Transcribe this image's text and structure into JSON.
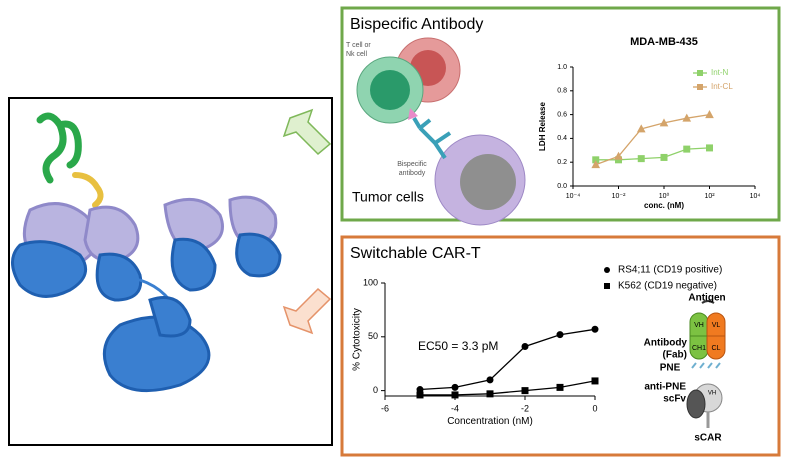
{
  "chart_data": [
    {
      "type": "line",
      "title": "MDA-MB-435",
      "x_label": "conc. (nM)",
      "y_label": "LDH Release",
      "xscale": "log",
      "x": [
        0.001,
        0.01,
        0.1,
        1,
        10,
        100
      ],
      "xlim": [
        0.0001,
        10000
      ],
      "xticks": [
        {
          "value": 0.0001,
          "label": "10⁻⁴"
        },
        {
          "value": 0.01,
          "label": "10⁻²"
        },
        {
          "value": 1,
          "label": "10⁰"
        },
        {
          "value": 100,
          "label": "10²"
        },
        {
          "value": 10000,
          "label": "10⁴"
        }
      ],
      "ylim": [
        0,
        1
      ],
      "yticks": [
        {
          "value": 0,
          "label": "0.0"
        },
        {
          "value": 0.2,
          "label": "0.2"
        },
        {
          "value": 0.4,
          "label": "0.4"
        },
        {
          "value": 0.6,
          "label": "0.6"
        },
        {
          "value": 0.8,
          "label": "0.8"
        },
        {
          "value": 1,
          "label": "1.0"
        }
      ],
      "legend": "upper right",
      "series": [
        {
          "name": "Int-N",
          "color": "#8fd16a",
          "marker": "square",
          "values": [
            0.22,
            0.22,
            0.23,
            0.24,
            0.31,
            0.32
          ]
        },
        {
          "name": "Int-CL",
          "color": "#d4a46a",
          "marker": "triangle",
          "values": [
            0.18,
            0.25,
            0.48,
            0.53,
            0.57,
            0.6
          ]
        }
      ]
    },
    {
      "type": "line",
      "x_label": "Concentration (nM)",
      "y_label": "% Cytotoxicity",
      "annotation": "EC50 = 3.3 pM",
      "x": [
        -5,
        -4,
        -3,
        -2,
        -1,
        0
      ],
      "xlim": [
        -6,
        0
      ],
      "xticks": [
        -6,
        -4,
        -2,
        0
      ],
      "ylim": [
        -5,
        100
      ],
      "yticks": [
        0,
        50,
        100
      ],
      "legend": "upper right",
      "series": [
        {
          "name": "RS4;11 (CD19 positive)",
          "color": "#000000",
          "marker": "circle",
          "values": [
            1,
            3,
            10,
            41,
            52,
            57
          ]
        },
        {
          "name": "K562  (CD19 negative)",
          "color": "#000000",
          "marker": "square",
          "values": [
            -4,
            -4,
            -3,
            0,
            3,
            9
          ]
        }
      ]
    }
  ],
  "panels": {
    "bispecific": {
      "title": "Bispecific Antibody",
      "cell_label": [
        "T cell or",
        "Nk cell"
      ],
      "antibody_label": [
        "Bispecific",
        "antibody"
      ],
      "tumor_label": "Tumor cells"
    },
    "car_t": {
      "title": "Switchable CAR-T",
      "antigen": "Antigen",
      "antibody": [
        "Antibody",
        "(Fab)"
      ],
      "vh": "VH",
      "vl": "VL",
      "ch1": "CH1",
      "cl": "CL",
      "pne": "PNE",
      "anti_pne": [
        "anti-PNE",
        "scFv"
      ],
      "scar_vh": "VH",
      "scar": "sCAR"
    }
  }
}
